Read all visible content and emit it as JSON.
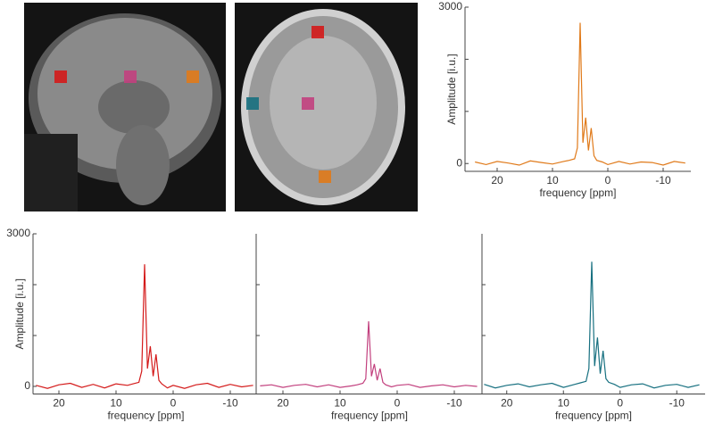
{
  "chart_data": [
    {
      "type": "line",
      "ylabel": "Amplitude [i.u.]",
      "xlabel": "frequency [ppm]",
      "xlim": [
        25,
        -15
      ],
      "xticks": [
        20,
        10,
        0,
        -10
      ],
      "ylim": [
        -150,
        3000
      ],
      "yticks": [
        0,
        3000
      ],
      "yminorticks": [
        1000,
        2000
      ],
      "series": [
        {
          "color": "#e07a1a",
          "x": [
            24,
            22,
            20,
            18,
            16,
            14,
            12,
            10,
            8,
            7,
            6,
            5.5,
            5,
            4.5,
            4,
            3.5,
            3,
            2.5,
            2,
            1,
            0,
            -2,
            -4,
            -6,
            -8,
            -10,
            -12,
            -14
          ],
          "values": [
            30,
            -20,
            40,
            10,
            -30,
            50,
            20,
            -10,
            40,
            60,
            90,
            300,
            2700,
            400,
            880,
            250,
            680,
            150,
            60,
            30,
            -20,
            40,
            -10,
            30,
            20,
            -30,
            40,
            10
          ]
        }
      ]
    },
    {
      "type": "line",
      "ylabel": "Amplitude [i.u.]",
      "xlabel": "frequency [ppm]",
      "xlim": [
        25,
        -15
      ],
      "xticks": [
        20,
        10,
        0,
        -10
      ],
      "ylim": [
        -150,
        3000
      ],
      "yticks": [
        0,
        3000
      ],
      "yminorticks": [
        1000,
        2000
      ],
      "series": [
        {
          "color": "#d41a1a",
          "x": [
            24,
            22,
            20,
            18,
            16,
            14,
            12,
            10,
            8,
            7,
            6,
            5.5,
            5,
            4.5,
            4,
            3.5,
            3,
            2.5,
            2,
            1,
            0,
            -2,
            -4,
            -6,
            -8,
            -10,
            -12,
            -14
          ],
          "values": [
            20,
            -40,
            30,
            60,
            -20,
            40,
            -30,
            50,
            20,
            50,
            80,
            300,
            2400,
            350,
            790,
            200,
            630,
            120,
            50,
            -30,
            20,
            -40,
            30,
            60,
            -20,
            40,
            -10,
            20
          ]
        }
      ]
    },
    {
      "type": "line",
      "xlabel": "frequency [ppm]",
      "xlim": [
        25,
        -15
      ],
      "xticks": [
        20,
        10,
        0,
        -10
      ],
      "ylim": [
        -150,
        3000
      ],
      "yminorticks": [
        1000,
        2000
      ],
      "series": [
        {
          "color": "#c2407e",
          "x": [
            24,
            22,
            20,
            18,
            16,
            14,
            12,
            10,
            8,
            7,
            6,
            5.5,
            5,
            4.5,
            4,
            3.5,
            3,
            2.5,
            2,
            1,
            0,
            -2,
            -4,
            -6,
            -8,
            -10,
            -12,
            -14
          ],
          "values": [
            10,
            30,
            -20,
            20,
            40,
            -10,
            30,
            -20,
            10,
            30,
            60,
            150,
            1280,
            200,
            440,
            120,
            350,
            80,
            30,
            -10,
            20,
            40,
            -20,
            10,
            30,
            -10,
            20,
            0
          ]
        }
      ]
    },
    {
      "type": "line",
      "xlabel": "frequency [ppm]",
      "xlim": [
        25,
        -15
      ],
      "xticks": [
        20,
        10,
        0,
        -10
      ],
      "ylim": [
        -150,
        3000
      ],
      "yminorticks": [
        1000,
        2000
      ],
      "series": [
        {
          "color": "#177080",
          "x": [
            24,
            22,
            20,
            18,
            16,
            14,
            12,
            10,
            8,
            7,
            6,
            5.5,
            5,
            4.5,
            4,
            3.5,
            3,
            2.5,
            2,
            1,
            0,
            -2,
            -4,
            -6,
            -8,
            -10,
            -12,
            -14
          ],
          "values": [
            40,
            -30,
            20,
            50,
            -10,
            30,
            60,
            -20,
            40,
            70,
            100,
            350,
            2450,
            400,
            960,
            250,
            700,
            150,
            80,
            40,
            -20,
            30,
            50,
            -30,
            20,
            40,
            -20,
            30
          ]
        }
      ]
    }
  ]
}
